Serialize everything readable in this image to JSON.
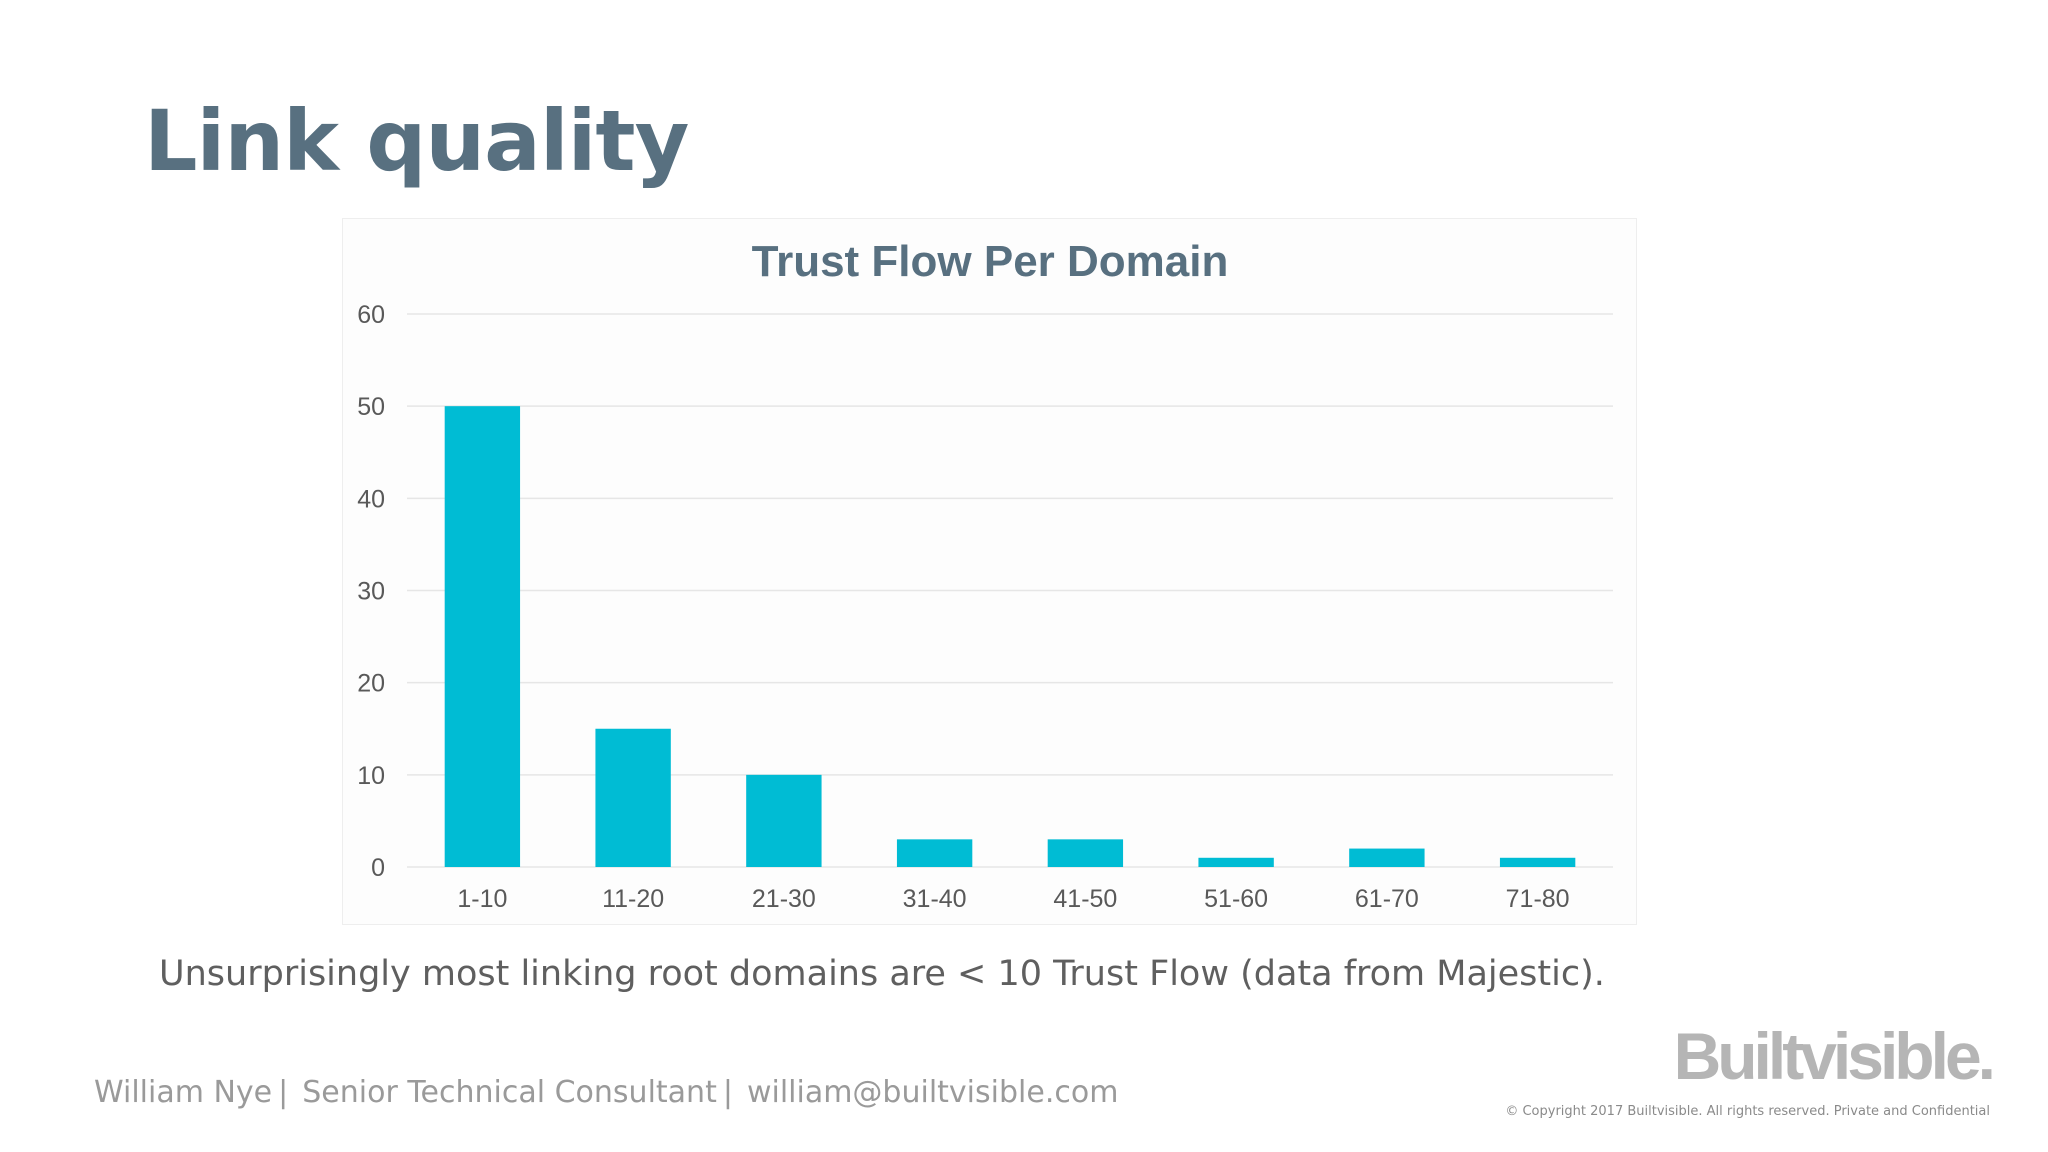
{
  "slide": {
    "title": "Link quality",
    "caption": "Unsurprisingly most linking root domains are < 10 Trust Flow (data from Majestic)."
  },
  "footer": {
    "name": "William Nye",
    "role": "Senior Technical Consultant",
    "email": "william@builtvisible.com",
    "separator": "|",
    "logo": "Builtvisible.",
    "copyright": "© Copyright 2017 Builtvisible. All rights reserved. Private and Confidential"
  },
  "colors": {
    "bar": "#00BCD4",
    "title": "#587080",
    "grid": "#e6e6e6"
  },
  "chart_data": {
    "type": "bar",
    "title": "Trust Flow Per Domain",
    "xlabel": "",
    "ylabel": "",
    "categories": [
      "1-10",
      "11-20",
      "21-30",
      "31-40",
      "41-50",
      "51-60",
      "61-70",
      "71-80"
    ],
    "values": [
      50,
      15,
      10,
      3,
      3,
      1,
      2,
      1
    ],
    "ylim": [
      0,
      60
    ],
    "yticks": [
      0,
      10,
      20,
      30,
      40,
      50,
      60
    ],
    "grid": true,
    "legend": "none"
  }
}
